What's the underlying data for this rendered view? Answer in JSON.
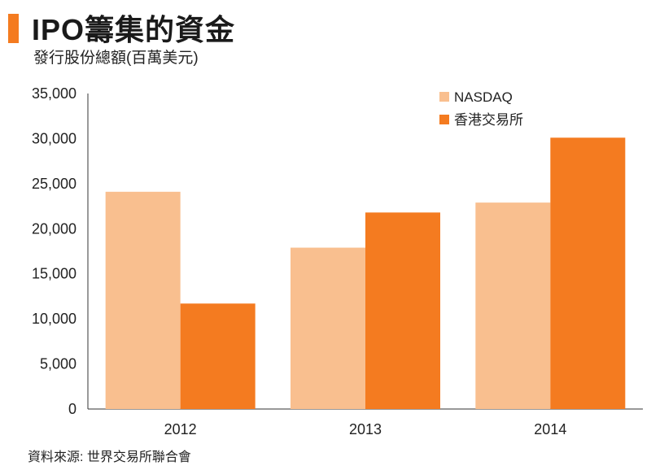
{
  "header": {
    "title": "IPO籌集的資金",
    "subtitle": "發行股份總額(百萬美元)"
  },
  "footer": {
    "source": "資料來源: 世界交易所聯合會"
  },
  "colors": {
    "accent": "#F47B20",
    "nasdaq": "#F9BF8F",
    "hkex": "#F47B20",
    "axis": "#333333"
  },
  "chart_data": {
    "type": "bar",
    "title": "IPO籌集的資金",
    "subtitle": "發行股份總額(百萬美元)",
    "xlabel": "",
    "ylabel": "",
    "categories": [
      "2012",
      "2013",
      "2014"
    ],
    "series": [
      {
        "name": "NASDAQ",
        "values": [
          24100,
          17900,
          22900
        ]
      },
      {
        "name": "香港交易所",
        "values": [
          11700,
          21800,
          30100
        ]
      }
    ],
    "ylim": [
      0,
      35000
    ],
    "yticks": [
      "0",
      "5,000",
      "10,000",
      "15,000",
      "20,000",
      "25,000",
      "30,000",
      "35,000"
    ],
    "grid": false,
    "legend_position": "top-right"
  }
}
